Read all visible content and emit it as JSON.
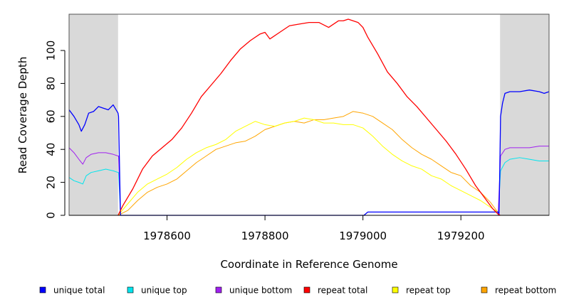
{
  "chart_data": {
    "type": "line",
    "title": "",
    "xlabel": "Coordinate in Reference Genome",
    "ylabel": "Read Coverage Depth",
    "xlim": [
      1978400,
      1979380
    ],
    "ylim": [
      0,
      122
    ],
    "x_ticks": [
      1978600,
      1978800,
      1979000,
      1979200
    ],
    "x_tick_labels": [
      "1978600",
      "1978800",
      "1979000",
      "1979200"
    ],
    "y_ticks": [
      0,
      20,
      40,
      60,
      80,
      100
    ],
    "y_tick_labels": [
      "0",
      "20",
      "40",
      "60",
      "80",
      "100"
    ],
    "shaded_regions": [
      {
        "from": 1978400,
        "to": 1978500,
        "color": "#d9d9d9"
      },
      {
        "from": 1979280,
        "to": 1979380,
        "color": "#d9d9d9"
      }
    ],
    "series": [
      {
        "name": "unique total",
        "color": "#0000ff",
        "x": [
          1978400,
          1978410,
          1978420,
          1978425,
          1978432,
          1978440,
          1978450,
          1978460,
          1978470,
          1978480,
          1978490,
          1978500,
          1978501,
          1978505,
          1978700,
          1978900,
          1979000,
          1979002,
          1979010,
          1979100,
          1979200,
          1979276,
          1979278,
          1979281,
          1979285,
          1979290,
          1979300,
          1979320,
          1979340,
          1979360,
          1979370,
          1979380
        ],
        "values": [
          64,
          60,
          55,
          51,
          55,
          62,
          63,
          66,
          65,
          64,
          67,
          62,
          60,
          0,
          0,
          0,
          0,
          0,
          2,
          2,
          2,
          2,
          0,
          60,
          68,
          74,
          75,
          75,
          76,
          75,
          74,
          75
        ]
      },
      {
        "name": "unique top",
        "color": "#00e5ee",
        "x": [
          1978400,
          1978410,
          1978420,
          1978428,
          1978435,
          1978445,
          1978460,
          1978475,
          1978490,
          1978500,
          1978501,
          1978505,
          1978700,
          1978900,
          1979100,
          1979276,
          1979281,
          1979290,
          1979300,
          1979320,
          1979340,
          1979360,
          1979380
        ],
        "values": [
          23,
          21,
          20,
          19,
          24,
          26,
          27,
          28,
          27,
          26,
          26,
          0,
          0,
          0,
          0,
          0,
          27,
          32,
          34,
          35,
          34,
          33,
          33
        ]
      },
      {
        "name": "unique bottom",
        "color": "#a020f0",
        "x": [
          1978400,
          1978410,
          1978420,
          1978428,
          1978435,
          1978445,
          1978460,
          1978475,
          1978490,
          1978500,
          1978501,
          1978505,
          1978700,
          1978900,
          1979100,
          1979276,
          1979281,
          1979290,
          1979300,
          1979320,
          1979340,
          1979360,
          1979380
        ],
        "values": [
          41,
          38,
          34,
          31,
          35,
          37,
          38,
          38,
          37,
          36,
          36,
          0,
          0,
          0,
          0,
          0,
          36,
          40,
          41,
          41,
          41,
          42,
          42
        ]
      },
      {
        "name": "repeat total",
        "color": "#ff0000",
        "x": [
          1978500,
          1978510,
          1978530,
          1978550,
          1978570,
          1978590,
          1978610,
          1978630,
          1978650,
          1978670,
          1978690,
          1978710,
          1978730,
          1978750,
          1978770,
          1978790,
          1978800,
          1978810,
          1978830,
          1978850,
          1978870,
          1978890,
          1978910,
          1978930,
          1978950,
          1978960,
          1978970,
          1978990,
          1979000,
          1979010,
          1979030,
          1979050,
          1979070,
          1979090,
          1979110,
          1979130,
          1979150,
          1979170,
          1979190,
          1979210,
          1979230,
          1979250,
          1979265,
          1979275,
          1979280
        ],
        "values": [
          0,
          6,
          16,
          28,
          36,
          41,
          46,
          53,
          62,
          72,
          79,
          86,
          94,
          101,
          106,
          110,
          111,
          107,
          111,
          115,
          116,
          117,
          117,
          114,
          118,
          118,
          119,
          117,
          114,
          108,
          98,
          87,
          80,
          72,
          66,
          59,
          52,
          45,
          37,
          28,
          18,
          10,
          4,
          1,
          0
        ]
      },
      {
        "name": "repeat top",
        "color": "#ffff00",
        "x": [
          1978500,
          1978520,
          1978540,
          1978560,
          1978580,
          1978600,
          1978620,
          1978640,
          1978660,
          1978680,
          1978700,
          1978720,
          1978740,
          1978760,
          1978780,
          1978800,
          1978820,
          1978840,
          1978860,
          1978880,
          1978900,
          1978920,
          1978940,
          1978960,
          1978980,
          1979000,
          1979020,
          1979040,
          1979060,
          1979080,
          1979100,
          1979120,
          1979140,
          1979160,
          1979180,
          1979200,
          1979220,
          1979240,
          1979260,
          1979275
        ],
        "values": [
          0,
          7,
          14,
          19,
          22,
          25,
          29,
          34,
          38,
          41,
          43,
          46,
          51,
          54,
          57,
          55,
          54,
          56,
          57,
          59,
          58,
          56,
          56,
          55,
          55,
          53,
          48,
          42,
          37,
          33,
          30,
          28,
          24,
          22,
          18,
          15,
          12,
          9,
          5,
          2
        ]
      },
      {
        "name": "repeat bottom",
        "color": "#ffa500",
        "x": [
          1978500,
          1978520,
          1978540,
          1978560,
          1978580,
          1978600,
          1978620,
          1978640,
          1978660,
          1978680,
          1978700,
          1978720,
          1978740,
          1978760,
          1978780,
          1978800,
          1978820,
          1978840,
          1978860,
          1978880,
          1978900,
          1978920,
          1978940,
          1978960,
          1978980,
          1979000,
          1979020,
          1979040,
          1979060,
          1979080,
          1979100,
          1979120,
          1979140,
          1979160,
          1979180,
          1979200,
          1979220,
          1979240,
          1979260,
          1979270,
          1979280
        ],
        "values": [
          0,
          3,
          9,
          14,
          17,
          19,
          22,
          27,
          32,
          36,
          40,
          42,
          44,
          45,
          48,
          52,
          54,
          56,
          57,
          56,
          58,
          58,
          59,
          60,
          63,
          62,
          60,
          56,
          52,
          46,
          41,
          37,
          34,
          30,
          26,
          24,
          18,
          14,
          8,
          4,
          0
        ]
      }
    ],
    "legend": {
      "position": "bottom",
      "entries": [
        {
          "label": "unique total",
          "color": "#0000ff"
        },
        {
          "label": "unique top",
          "color": "#00e5ee"
        },
        {
          "label": "unique bottom",
          "color": "#a020f0"
        },
        {
          "label": "repeat total",
          "color": "#ff0000"
        },
        {
          "label": "repeat top",
          "color": "#ffff00"
        },
        {
          "label": "repeat bottom",
          "color": "#ffa500"
        }
      ]
    }
  }
}
